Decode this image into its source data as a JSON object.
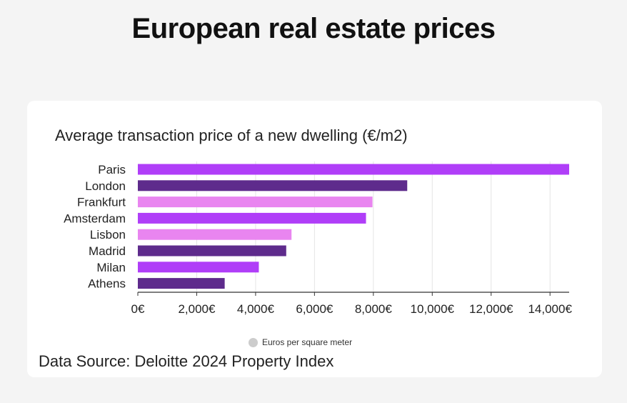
{
  "title": "European real estate prices",
  "source": "Data Source: Deloitte 2024 Property Index",
  "chart_data": {
    "type": "bar",
    "orientation": "horizontal",
    "title": "Average transaction price of a new dwelling (€/m2)",
    "categories": [
      "Paris",
      "London",
      "Frankfurt",
      "Amsterdam",
      "Lisbon",
      "Madrid",
      "Milan",
      "Athens"
    ],
    "series": [
      {
        "name": "Euros per square meter",
        "values": [
          14650,
          9150,
          7970,
          7750,
          5220,
          5040,
          4110,
          2950
        ]
      }
    ],
    "colors": [
      "#b03ef8",
      "#5e2b8c",
      "#e985f0",
      "#b03ef8",
      "#e985f0",
      "#5e2b8c",
      "#b03ef8",
      "#5e2b8c"
    ],
    "legend_color": "#cccccc",
    "xlim": [
      0,
      14650
    ],
    "xticks": [
      0,
      2000,
      4000,
      6000,
      8000,
      10000,
      12000,
      14000
    ],
    "xtick_labels": [
      "0€",
      "2,000€",
      "4,000€",
      "6,000€",
      "8,000€",
      "10,000€",
      "12,000€",
      "14,000€"
    ],
    "grid": true,
    "legend_position": "bottom"
  }
}
